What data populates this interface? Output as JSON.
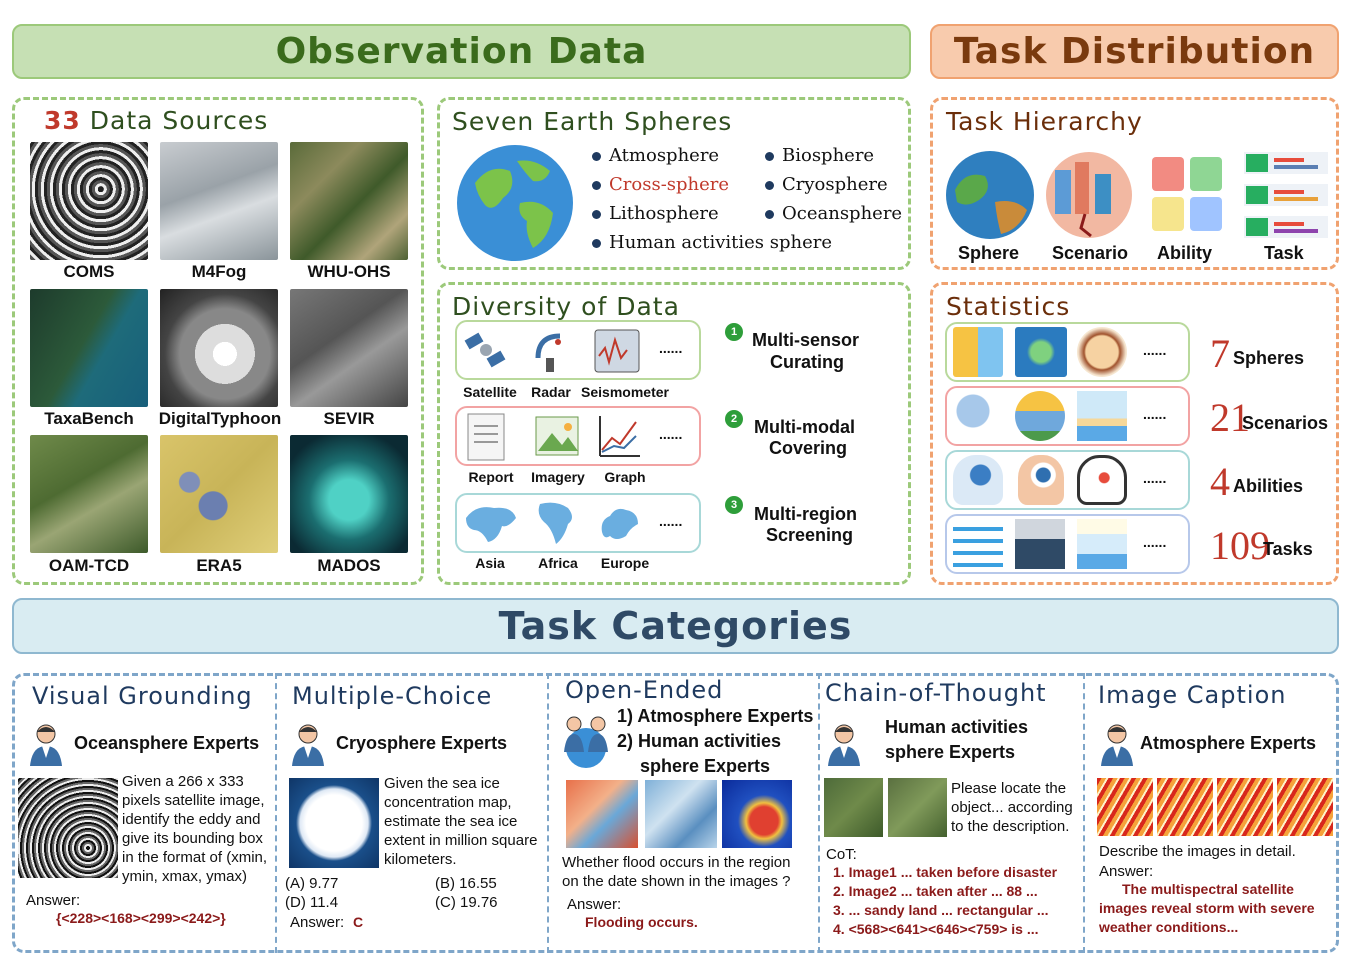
{
  "banners": {
    "observation": "Observation Data",
    "task_distribution": "Task Distribution",
    "task_categories": "Task Categories"
  },
  "data_sources": {
    "count": "33",
    "title": "Data Sources",
    "items": [
      "COMS",
      "M4Fog",
      "WHU-OHS",
      "TaxaBench",
      "DigitalTyphoon",
      "SEVIR",
      "OAM-TCD",
      "ERA5",
      "MADOS"
    ]
  },
  "spheres": {
    "title": "Seven Earth Spheres",
    "items": [
      "Atmosphere",
      "Biosphere",
      "Cross-sphere",
      "Cryosphere",
      "Lithosphere",
      "Oceansphere",
      "Human activities sphere"
    ]
  },
  "diversity": {
    "title": "Diversity of Data",
    "row1": [
      "Satellite",
      "Radar",
      "Seismometer"
    ],
    "row2": [
      "Report",
      "Imagery",
      "Graph"
    ],
    "row3": [
      "Asia",
      "Africa",
      "Europe"
    ],
    "ellipsis": "......",
    "steps": [
      {
        "num": "1",
        "line1": "Multi-sensor",
        "line2": "Curating"
      },
      {
        "num": "2",
        "line1": "Multi-modal",
        "line2": "Covering"
      },
      {
        "num": "3",
        "line1": "Multi-region",
        "line2": "Screening"
      }
    ]
  },
  "hierarchy": {
    "title": "Task Hierarchy",
    "items": [
      "Sphere",
      "Scenario",
      "Ability",
      "Task"
    ]
  },
  "statistics": {
    "title": "Statistics",
    "ellipsis": "......",
    "rows": [
      {
        "num": "7",
        "label": "Spheres"
      },
      {
        "num": "21",
        "label": "Scenarios"
      },
      {
        "num": "4",
        "label": "Abilities"
      },
      {
        "num": "109",
        "label": "Tasks"
      }
    ]
  },
  "categories": {
    "visual": {
      "title": "Visual Grounding",
      "expert": "Oceansphere Experts",
      "question": [
        "Given a 266 x 333",
        "pixels satellite image,",
        "identify the eddy and",
        "give its bounding box",
        "in the format of (xmin,",
        "ymin, xmax, ymax)"
      ],
      "answer_label": "Answer:",
      "answer": "{<228><168><299><242>}"
    },
    "mc": {
      "title": "Multiple-Choice",
      "expert": "Cryosphere Experts",
      "question": [
        "Given the sea ice",
        "concentration map,",
        "estimate the sea ice",
        "extent in million square",
        "kilometers."
      ],
      "options": [
        "(A) 9.77",
        "(B) 16.55",
        "(D) 11.4",
        "(C) 19.76"
      ],
      "answer_label": "Answer:",
      "answer": "C"
    },
    "open": {
      "title": "Open-Ended",
      "expert1": "1) Atmosphere Experts",
      "expert2": "2) Human activities",
      "expert3": "sphere Experts",
      "question": [
        "Whether flood occurs in the region",
        "on the date shown in the images ?"
      ],
      "answer_label": "Answer:",
      "answer": "Flooding occurs."
    },
    "cot": {
      "title": "Chain-of-Thought",
      "expert1": "Human activities",
      "expert2": "sphere Experts",
      "question": [
        "Please locate the",
        "object... according",
        "to the description."
      ],
      "cot_label": "CoT:",
      "steps": [
        "1. Image1 ... taken before disaster",
        "2. Image2 ... taken after ... 88 ...",
        "3. ... sandy land ... rectangular ...",
        "4. <568><641><646><759> is ..."
      ]
    },
    "caption": {
      "title": "Image Caption",
      "expert": "Atmosphere Experts",
      "question": "Describe the images in detail.",
      "answer_label": "Answer:",
      "answer": [
        "The multispectral satellite",
        "images reveal storm with severe",
        "weather conditions..."
      ]
    }
  },
  "colors": {
    "green_border": "#9cc97a",
    "orange_border": "#f0a270",
    "blue_border": "#7fa6c9",
    "accent_red": "#c0392b",
    "dark_red": "#8b1a1a"
  }
}
